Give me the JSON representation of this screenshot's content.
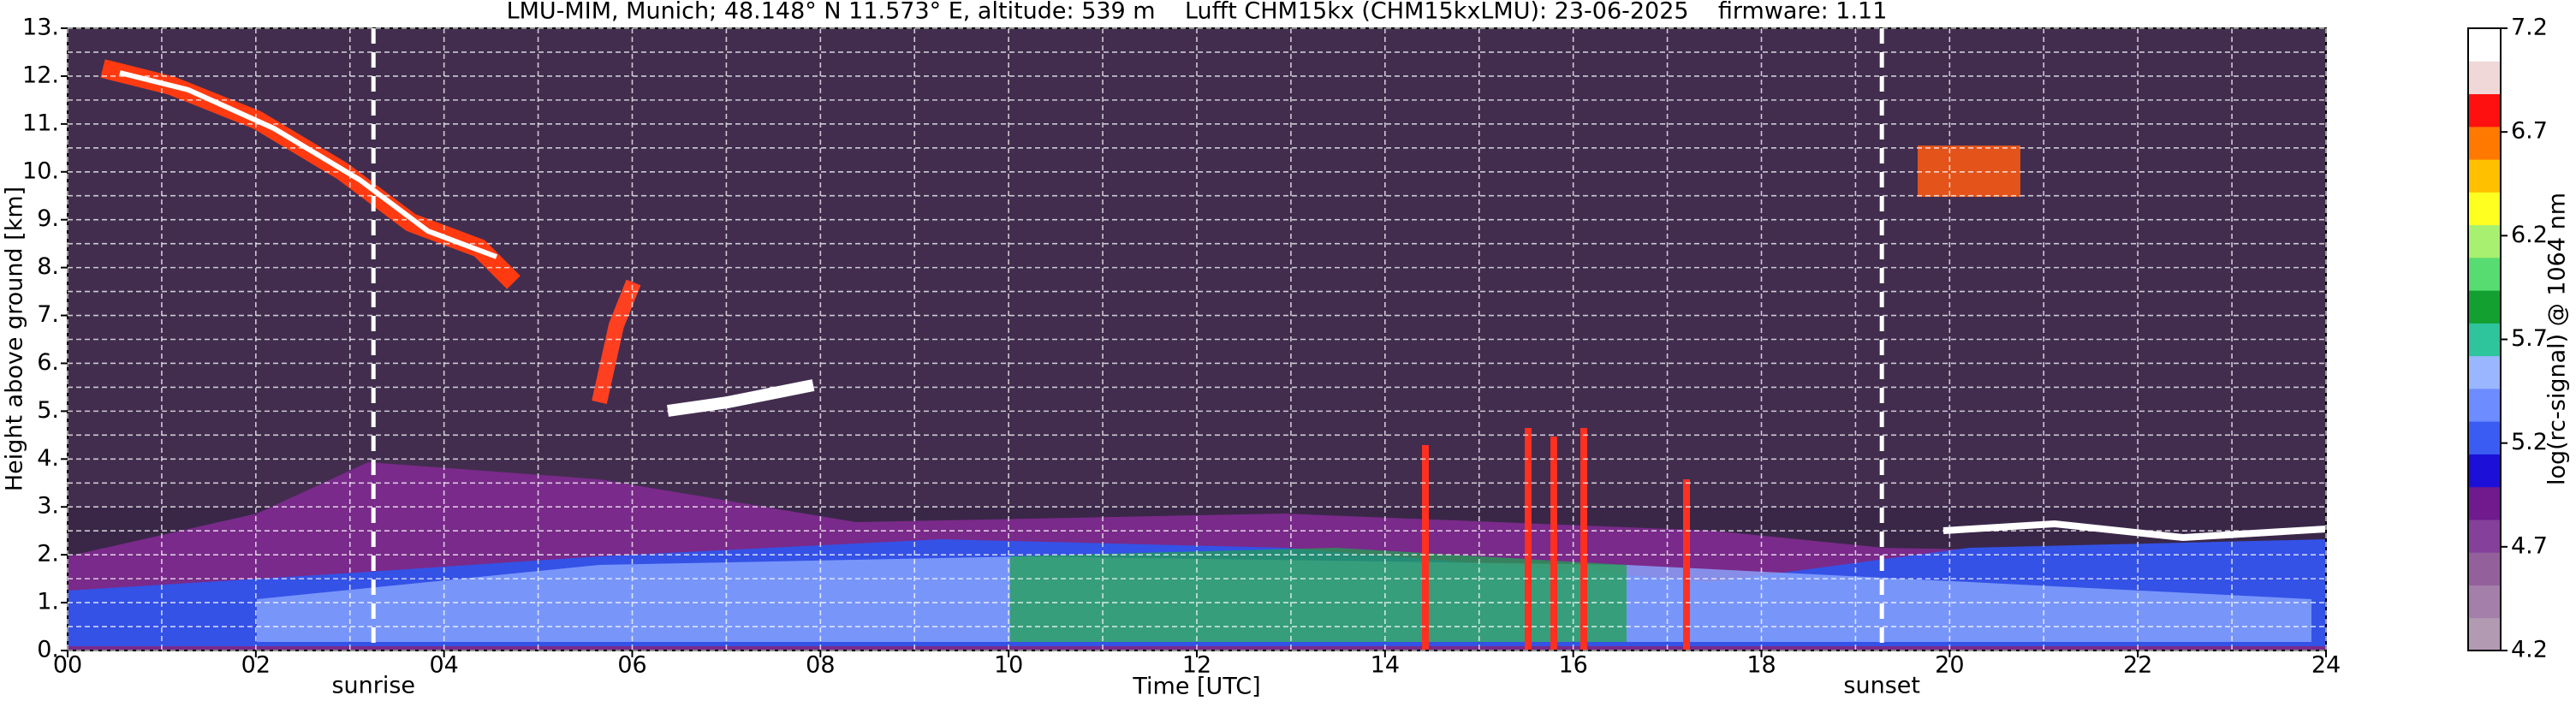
{
  "chart_data": {
    "type": "heatmap",
    "title": "LMU-MIM, Munich; 48.148° N 11.573° E, altitude: 539 m    Lufft CHM15kx (CHM15kxLMU): 23-06-2025    firmware: 1.11",
    "x_label": "Time [UTC]",
    "y_label": "Height above ground [km]",
    "colorbar_label": "log(rc-signal) @ 1064 nm",
    "xlim": [
      0,
      24
    ],
    "xticks": [
      {
        "value": 0,
        "label": "00"
      },
      {
        "value": 2,
        "label": "02"
      },
      {
        "value": 4,
        "label": "04"
      },
      {
        "value": 6,
        "label": "06"
      },
      {
        "value": 8,
        "label": "08"
      },
      10,
      12,
      14,
      16,
      18,
      20,
      22,
      24
    ],
    "xminorticks": [
      1,
      3,
      5,
      7,
      9,
      11,
      13,
      15,
      17,
      19,
      21,
      23
    ],
    "ylim": [
      0,
      13
    ],
    "yticks": [
      {
        "value": 0,
        "label": "0."
      },
      {
        "value": 1,
        "label": "1."
      },
      {
        "value": 2,
        "label": "2."
      },
      {
        "value": 3,
        "label": "3."
      },
      {
        "value": 4,
        "label": "4."
      },
      {
        "value": 5,
        "label": "5."
      },
      {
        "value": 6,
        "label": "6."
      },
      {
        "value": 7,
        "label": "7."
      },
      {
        "value": 8,
        "label": "8."
      },
      {
        "value": 9,
        "label": "9."
      },
      {
        "value": 10,
        "label": "10."
      },
      {
        "value": 11,
        "label": "11."
      },
      {
        "value": 12,
        "label": "12."
      },
      {
        "value": 13,
        "label": "13."
      }
    ],
    "yminorticks": [
      0.5,
      1.5,
      2.5,
      3.5,
      4.5,
      5.5,
      6.5,
      7.5,
      8.5,
      9.5,
      10.5,
      11.5,
      12.5
    ],
    "grid": true,
    "clim": [
      4.2,
      7.2
    ],
    "cticks": [
      4.2,
      4.7,
      5.2,
      5.7,
      6.2,
      6.7,
      7.2
    ],
    "colormap": [
      "#b39ab3",
      "#a47fa9",
      "#93609c",
      "#84409a",
      "#701a8e",
      "#1c10d8",
      "#3a5cf2",
      "#6c8cff",
      "#9ab6ff",
      "#2ec49c",
      "#13a030",
      "#56dc70",
      "#a8f070",
      "#ffff20",
      "#ffc000",
      "#ff7800",
      "#ff1010",
      "#f0d8d8",
      "#ffffff"
    ],
    "annotations": [
      {
        "label": "sunrise",
        "x": 3.25
      },
      {
        "label": "sunset",
        "x": 19.28
      }
    ]
  }
}
